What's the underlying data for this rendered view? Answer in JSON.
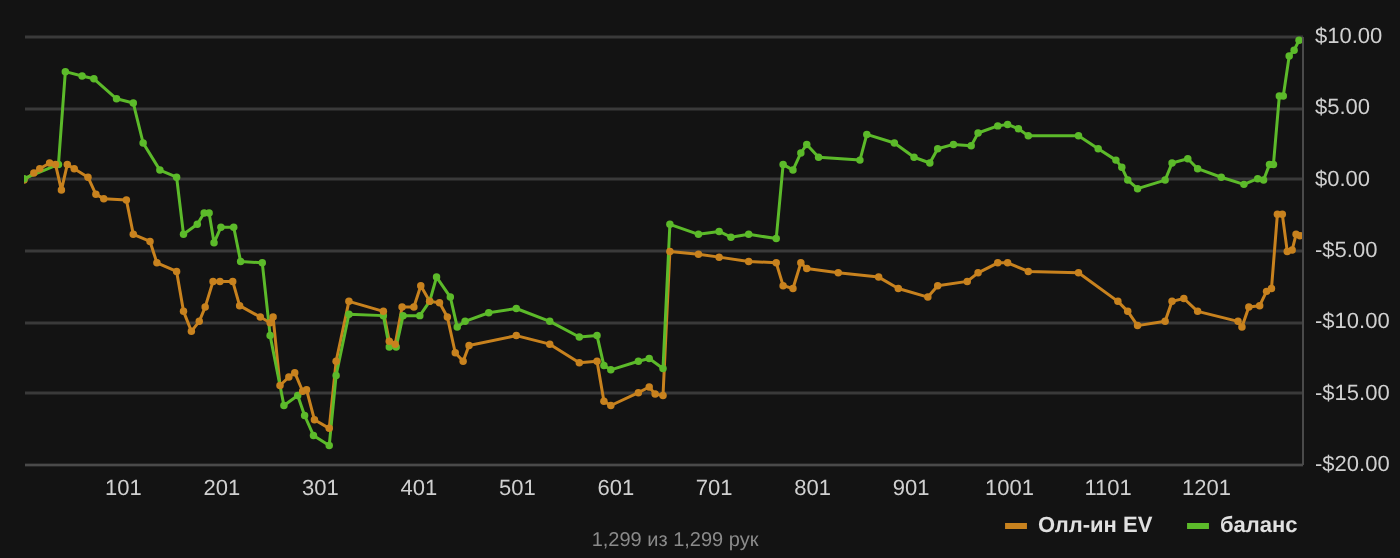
{
  "chart_data": {
    "type": "line",
    "annotations": [
      "1,299 из 1,299 рук"
    ],
    "xlim": [
      1,
      1299
    ],
    "xticks": [
      101,
      201,
      301,
      401,
      501,
      601,
      701,
      801,
      901,
      1001,
      1101,
      1201
    ],
    "ylim": [
      -20,
      10
    ],
    "yticks": [
      {
        "value": -20,
        "label": "-$20.00"
      },
      {
        "value": -15,
        "label": "-$15.00"
      },
      {
        "value": -10,
        "label": "-$10.00"
      },
      {
        "value": -5,
        "label": "-$5.00"
      },
      {
        "value": 0,
        "label": "$0.00"
      },
      {
        "value": 5,
        "label": "$5.00"
      },
      {
        "value": 10,
        "label": "$10.00"
      }
    ],
    "grid": "y",
    "legend": "bottom right",
    "marker": "circle",
    "line_style": "solid",
    "series": [
      {
        "name": "Олл-ин EV",
        "color": "#c8821e",
        "x": [
          1,
          11,
          17,
          27,
          33,
          39,
          45,
          52,
          66,
          74,
          82,
          105,
          112,
          129,
          136,
          156,
          163,
          171,
          179,
          185,
          193,
          200,
          213,
          220,
          241,
          251,
          254,
          261,
          270,
          276,
          284,
          288,
          296,
          311,
          318,
          331,
          366,
          372,
          378,
          385,
          397,
          404,
          413,
          423,
          431,
          439,
          447,
          453,
          501,
          535,
          565,
          583,
          590,
          597,
          625,
          636,
          642,
          650,
          657,
          686,
          707,
          737,
          765,
          772,
          782,
          790,
          796,
          828,
          869,
          889,
          919,
          929,
          959,
          970,
          990,
          1000,
          1021,
          1072,
          1112,
          1122,
          1132,
          1160,
          1167,
          1179,
          1193,
          1234,
          1238,
          1245,
          1256,
          1263,
          1268,
          1274,
          1279,
          1284,
          1289,
          1293,
          1297
        ],
        "values": [
          -0.1,
          0.4,
          0.7,
          1.1,
          1.0,
          -0.8,
          1.0,
          0.7,
          0.1,
          -1.1,
          -1.4,
          -1.5,
          -3.9,
          -4.4,
          -5.9,
          -6.5,
          -9.3,
          -10.7,
          -10.0,
          -9.0,
          -7.2,
          -7.2,
          -7.2,
          -8.9,
          -9.7,
          -10.1,
          -9.7,
          -14.5,
          -13.9,
          -13.6,
          -14.9,
          -14.8,
          -16.9,
          -17.5,
          -12.8,
          -8.6,
          -9.3,
          -11.4,
          -11.6,
          -9.0,
          -9.0,
          -7.5,
          -8.6,
          -8.7,
          -9.7,
          -12.2,
          -12.8,
          -11.7,
          -11.0,
          -11.6,
          -12.9,
          -12.8,
          -15.6,
          -15.9,
          -15.0,
          -14.6,
          -15.1,
          -15.2,
          -5.1,
          -5.3,
          -5.5,
          -5.8,
          -5.9,
          -7.5,
          -7.7,
          -5.9,
          -6.3,
          -6.6,
          -6.9,
          -7.7,
          -8.3,
          -7.5,
          -7.2,
          -6.6,
          -5.9,
          -5.9,
          -6.5,
          -6.6,
          -8.6,
          -9.3,
          -10.3,
          -10.0,
          -8.6,
          -8.4,
          -9.3,
          -10.0,
          -10.4,
          -9.0,
          -8.9,
          -7.9,
          -7.7,
          -2.5,
          -2.5,
          -5.1,
          -5.0,
          -3.9,
          -4.0
        ]
      },
      {
        "name": "баланс",
        "color": "#5cba2a",
        "x": [
          1,
          36,
          43,
          60,
          72,
          95,
          112,
          122,
          139,
          156,
          163,
          177,
          184,
          189,
          194,
          201,
          214,
          221,
          243,
          251,
          265,
          279,
          286,
          295,
          311,
          318,
          331,
          366,
          372,
          379,
          386,
          403,
          413,
          420,
          434,
          441,
          449,
          473,
          501,
          535,
          565,
          583,
          590,
          597,
          625,
          636,
          650,
          657,
          686,
          707,
          719,
          737,
          765,
          772,
          782,
          790,
          796,
          808,
          850,
          857,
          885,
          905,
          921,
          929,
          945,
          963,
          970,
          990,
          1000,
          1011,
          1021,
          1072,
          1092,
          1110,
          1116,
          1122,
          1132,
          1160,
          1167,
          1183,
          1193,
          1217,
          1240,
          1254,
          1260,
          1266,
          1270,
          1276,
          1280,
          1286,
          1291,
          1296
        ],
        "values": [
          0.0,
          1.0,
          7.5,
          7.2,
          7.0,
          5.6,
          5.3,
          2.5,
          0.6,
          0.1,
          -3.9,
          -3.2,
          -2.4,
          -2.4,
          -4.5,
          -3.4,
          -3.4,
          -5.8,
          -5.9,
          -11.0,
          -15.9,
          -15.2,
          -16.6,
          -18.0,
          -18.7,
          -13.8,
          -9.5,
          -9.6,
          -11.8,
          -11.8,
          -9.6,
          -9.6,
          -8.6,
          -6.9,
          -8.3,
          -10.4,
          -10.0,
          -9.4,
          -9.1,
          -10.0,
          -11.1,
          -11.0,
          -13.1,
          -13.4,
          -12.8,
          -12.6,
          -13.3,
          -3.2,
          -3.9,
          -3.7,
          -4.1,
          -3.9,
          -4.2,
          1.0,
          0.6,
          1.8,
          2.4,
          1.5,
          1.3,
          3.1,
          2.5,
          1.5,
          1.1,
          2.1,
          2.4,
          2.3,
          3.2,
          3.7,
          3.8,
          3.5,
          3.0,
          3.0,
          2.1,
          1.3,
          0.8,
          -0.1,
          -0.7,
          -0.1,
          1.1,
          1.4,
          0.7,
          0.1,
          -0.4,
          0.0,
          -0.1,
          1.0,
          1.0,
          5.8,
          5.8,
          8.6,
          9.0,
          9.7
        ]
      }
    ]
  }
}
